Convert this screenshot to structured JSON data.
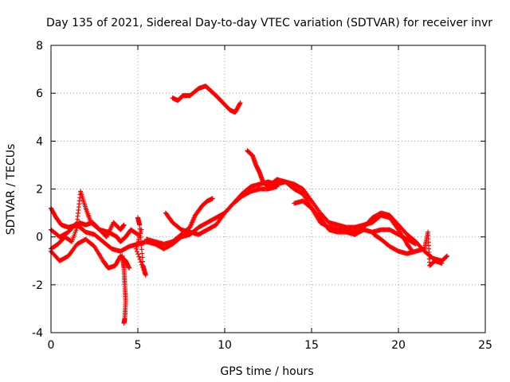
{
  "chart_data": {
    "type": "scatter",
    "title": "Day 135 of 2021, Sidereal Day-to-day VTEC variation (SDTVAR) for receiver invr",
    "xlabel": "GPS time / hours",
    "ylabel": "SDTVAR / TECUs",
    "xlim": [
      0,
      25
    ],
    "ylim": [
      -4,
      8
    ],
    "xticks": [
      0,
      5,
      10,
      15,
      20,
      25
    ],
    "yticks": [
      -4,
      -2,
      0,
      2,
      4,
      6,
      8
    ],
    "grid": true,
    "marker": "+",
    "color": "#ff0000",
    "series": [
      {
        "name": "s1",
        "points": [
          [
            0,
            1.2
          ],
          [
            0.3,
            0.8
          ],
          [
            0.6,
            0.5
          ],
          [
            1,
            0.4
          ],
          [
            1.5,
            0.5
          ],
          [
            2,
            0.2
          ],
          [
            2.5,
            0.1
          ],
          [
            3,
            -0.2
          ],
          [
            3.5,
            -0.5
          ],
          [
            4,
            -0.6
          ],
          [
            4.5,
            -0.4
          ],
          [
            5,
            -0.3
          ],
          [
            5.5,
            -0.2
          ],
          [
            6,
            -0.3
          ],
          [
            6.5,
            -0.5
          ],
          [
            7,
            -0.3
          ],
          [
            7.5,
            0
          ],
          [
            8,
            0.1
          ],
          [
            8.5,
            0.4
          ],
          [
            9,
            0.6
          ],
          [
            9.5,
            0.8
          ],
          [
            10,
            1
          ],
          [
            10.5,
            1.4
          ],
          [
            11,
            1.8
          ],
          [
            11.5,
            2.1
          ],
          [
            12,
            2.2
          ],
          [
            12.5,
            2.3
          ],
          [
            13,
            2.2
          ],
          [
            13.5,
            2.3
          ],
          [
            14,
            2
          ],
          [
            14.5,
            1.8
          ],
          [
            15,
            1.2
          ],
          [
            15.5,
            0.6
          ],
          [
            16,
            0.4
          ],
          [
            16.5,
            0.3
          ],
          [
            17,
            0.3
          ],
          [
            17.5,
            0.2
          ],
          [
            18,
            0.4
          ],
          [
            18.5,
            0.8
          ],
          [
            19,
            1
          ],
          [
            19.5,
            0.9
          ],
          [
            20,
            0.5
          ],
          [
            20.5,
            0.1
          ],
          [
            21,
            -0.2
          ],
          [
            21.5,
            -0.6
          ],
          [
            22,
            -0.9
          ],
          [
            22.5,
            -1
          ],
          [
            22.8,
            -0.8
          ]
        ]
      },
      {
        "name": "s2",
        "points": [
          [
            0,
            0.3
          ],
          [
            0.5,
            0
          ],
          [
            1,
            0.2
          ],
          [
            1.5,
            0.6
          ],
          [
            1.7,
            1.9
          ],
          [
            2,
            1.2
          ],
          [
            2.3,
            0.6
          ],
          [
            2.8,
            0.3
          ],
          [
            3.3,
            0.2
          ],
          [
            3.8,
            0
          ],
          [
            4,
            -0.2
          ],
          [
            4.3,
            0
          ],
          [
            4.6,
            0.3
          ],
          [
            5,
            0.1
          ]
        ]
      },
      {
        "name": "s3",
        "points": [
          [
            0,
            -0.6
          ],
          [
            0.5,
            -1
          ],
          [
            1,
            -0.8
          ],
          [
            1.5,
            -0.3
          ],
          [
            2,
            -0.1
          ],
          [
            2.5,
            -0.4
          ],
          [
            3,
            -1
          ],
          [
            3.3,
            -1.3
          ],
          [
            3.7,
            -1.2
          ],
          [
            4,
            -0.8
          ],
          [
            4.3,
            -1
          ],
          [
            4.5,
            -1.3
          ]
        ]
      },
      {
        "name": "s4",
        "points": [
          [
            0,
            -0.5
          ],
          [
            0.4,
            -0.3
          ],
          [
            0.8,
            0
          ],
          [
            1.2,
            -0.2
          ],
          [
            1.6,
            0.6
          ],
          [
            2,
            0.5
          ],
          [
            2.4,
            0.6
          ],
          [
            2.8,
            0.3
          ],
          [
            3.2,
            0
          ],
          [
            3.6,
            0.6
          ],
          [
            4,
            0.3
          ],
          [
            4.2,
            0.5
          ]
        ]
      },
      {
        "name": "s5",
        "points": [
          [
            4.1,
            -0.8
          ],
          [
            4.2,
            -1.3
          ],
          [
            4.25,
            -2
          ],
          [
            4.3,
            -2.7
          ],
          [
            4.25,
            -3.4
          ],
          [
            4.2,
            -3.6
          ]
        ]
      },
      {
        "name": "s6",
        "points": [
          [
            5,
            0.8
          ],
          [
            5.1,
            0.5
          ],
          [
            5.3,
            -1.2
          ],
          [
            5.45,
            -1.6
          ],
          [
            4.9,
            -0.5
          ],
          [
            5.2,
            0.3
          ]
        ]
      },
      {
        "name": "s7",
        "points": [
          [
            5.5,
            -0.1
          ],
          [
            6,
            -0.2
          ],
          [
            6.5,
            -0.3
          ],
          [
            7,
            -0.2
          ],
          [
            7.5,
            0.1
          ],
          [
            8,
            0.4
          ],
          [
            8.3,
            0.9
          ],
          [
            8.7,
            1.3
          ],
          [
            9,
            1.5
          ],
          [
            9.3,
            1.6
          ]
        ]
      },
      {
        "name": "s8",
        "points": [
          [
            6.6,
            1
          ],
          [
            7,
            0.6
          ],
          [
            7.5,
            0.3
          ],
          [
            8,
            0.2
          ],
          [
            8.5,
            0.1
          ],
          [
            9,
            0.3
          ],
          [
            9.5,
            0.5
          ],
          [
            10,
            1
          ],
          [
            10.5,
            1.4
          ],
          [
            11,
            1.7
          ],
          [
            11.5,
            1.9
          ],
          [
            12,
            2
          ],
          [
            12.5,
            2
          ],
          [
            13,
            2.1
          ]
        ]
      },
      {
        "name": "s9",
        "points": [
          [
            7,
            5.8
          ],
          [
            7.3,
            5.7
          ],
          [
            7.6,
            5.9
          ],
          [
            8,
            5.9
          ],
          [
            8.5,
            6.2
          ],
          [
            8.9,
            6.3
          ],
          [
            9.2,
            6.1
          ],
          [
            9.5,
            5.9
          ],
          [
            9.9,
            5.6
          ],
          [
            10.3,
            5.3
          ],
          [
            10.6,
            5.2
          ],
          [
            10.9,
            5.6
          ]
        ]
      },
      {
        "name": "s10",
        "points": [
          [
            11.3,
            3.6
          ],
          [
            11.6,
            3.4
          ],
          [
            11.8,
            3
          ],
          [
            12,
            2.7
          ],
          [
            12.2,
            2.3
          ],
          [
            12.5,
            2.1
          ],
          [
            13,
            2.4
          ],
          [
            13.5,
            2.3
          ],
          [
            14,
            2.2
          ],
          [
            14.5,
            2
          ],
          [
            15,
            1.5
          ],
          [
            15.5,
            1
          ],
          [
            16,
            0.6
          ],
          [
            16.5,
            0.5
          ],
          [
            17,
            0.4
          ],
          [
            17.5,
            0.4
          ],
          [
            18,
            0.5
          ],
          [
            18.5,
            0.6
          ],
          [
            19,
            0.9
          ],
          [
            19.5,
            0.8
          ],
          [
            20,
            0.3
          ],
          [
            20.5,
            -0.3
          ],
          [
            20.8,
            -0.6
          ]
        ]
      },
      {
        "name": "s11",
        "points": [
          [
            14,
            1.4
          ],
          [
            14.5,
            1.5
          ],
          [
            15,
            1.2
          ],
          [
            15.5,
            0.8
          ],
          [
            16,
            0.3
          ],
          [
            16.5,
            0.2
          ],
          [
            17,
            0.2
          ],
          [
            17.5,
            0.1
          ],
          [
            18,
            0.3
          ],
          [
            18.5,
            0.2
          ],
          [
            19,
            0.3
          ],
          [
            19.5,
            0.3
          ],
          [
            20,
            0.1
          ],
          [
            20.5,
            -0.1
          ],
          [
            21,
            -0.3
          ]
        ]
      },
      {
        "name": "s12",
        "points": [
          [
            18.6,
            0.1
          ],
          [
            19,
            -0.1
          ],
          [
            19.5,
            -0.4
          ],
          [
            20,
            -0.6
          ],
          [
            20.5,
            -0.7
          ],
          [
            21,
            -0.6
          ],
          [
            21.5,
            -0.5
          ],
          [
            21.7,
            0.2
          ],
          [
            21.8,
            -1.2
          ],
          [
            22.1,
            -1
          ],
          [
            22.5,
            -1.1
          ]
        ]
      }
    ]
  }
}
